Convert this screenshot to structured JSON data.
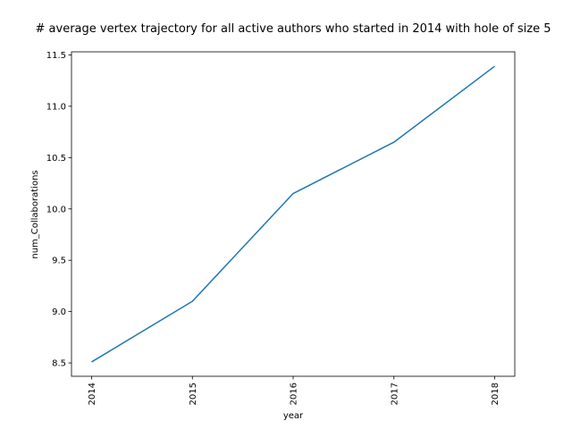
{
  "chart_data": {
    "type": "line",
    "title": "# average vertex trajectory for all active authors who started in 2014 with hole of size 5",
    "xlabel": "year",
    "ylabel": "num_Collaborations",
    "x": [
      "2014",
      "2015",
      "2016",
      "2017",
      "2018"
    ],
    "series": [
      {
        "values": [
          8.51,
          9.1,
          10.15,
          10.65,
          11.39
        ],
        "color": "#1f77b4"
      }
    ],
    "ylim": [
      8.37,
      11.53
    ],
    "yticks": [
      8.5,
      9.0,
      9.5,
      10.0,
      10.5,
      11.0,
      11.5
    ],
    "ytick_labels": [
      "8.5",
      "9.0",
      "9.5",
      "10.0",
      "10.5",
      "11.0",
      "11.5"
    ],
    "grid": false,
    "legend": "none"
  }
}
